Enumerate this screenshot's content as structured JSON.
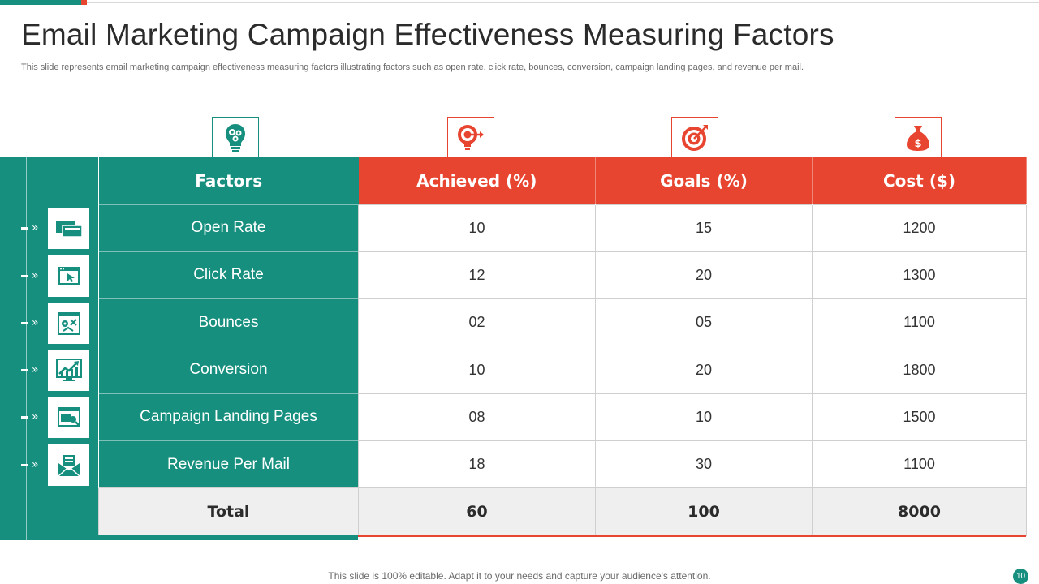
{
  "slide": {
    "title": "Email Marketing Campaign Effectiveness Measuring Factors",
    "subtitle": "This slide represents email marketing campaign effectiveness measuring factors illustrating factors such as open rate, click rate,  bounces, conversion, campaign landing pages, and revenue per mail.",
    "footer": "This slide is 100% editable. Adapt it to your needs and capture your audience's attention.",
    "page_number": "10"
  },
  "colors": {
    "accent_green": "#168f7e",
    "accent_red": "#e84530"
  },
  "header_icons": [
    "lightbulb-gears-icon",
    "target-idea-bulb-icon",
    "target-arrow-icon",
    "money-bag-icon"
  ],
  "table": {
    "columns": [
      "Factors",
      "Achieved (%)",
      "Goals (%)",
      "Cost ($)"
    ],
    "rows": [
      {
        "factor": "Open Rate",
        "achieved": "10",
        "goals": "15",
        "cost": "1200",
        "icon": "browser-window-icon"
      },
      {
        "factor": "Click Rate",
        "achieved": "12",
        "goals": "20",
        "cost": "1300",
        "icon": "cursor-click-icon"
      },
      {
        "factor": "Bounces",
        "achieved": "02",
        "goals": "05",
        "cost": "1100",
        "icon": "bounce-arrows-icon"
      },
      {
        "factor": "Conversion",
        "achieved": "10",
        "goals": "20",
        "cost": "1800",
        "icon": "growth-chart-icon"
      },
      {
        "factor": "Campaign Landing Pages",
        "achieved": "08",
        "goals": "10",
        "cost": "1500",
        "icon": "landing-page-icon"
      },
      {
        "factor": "Revenue Per Mail",
        "achieved": "18",
        "goals": "30",
        "cost": "1100",
        "icon": "mail-envelope-icon"
      }
    ],
    "total": {
      "label": "Total",
      "achieved": "60",
      "goals": "100",
      "cost": "8000"
    }
  }
}
